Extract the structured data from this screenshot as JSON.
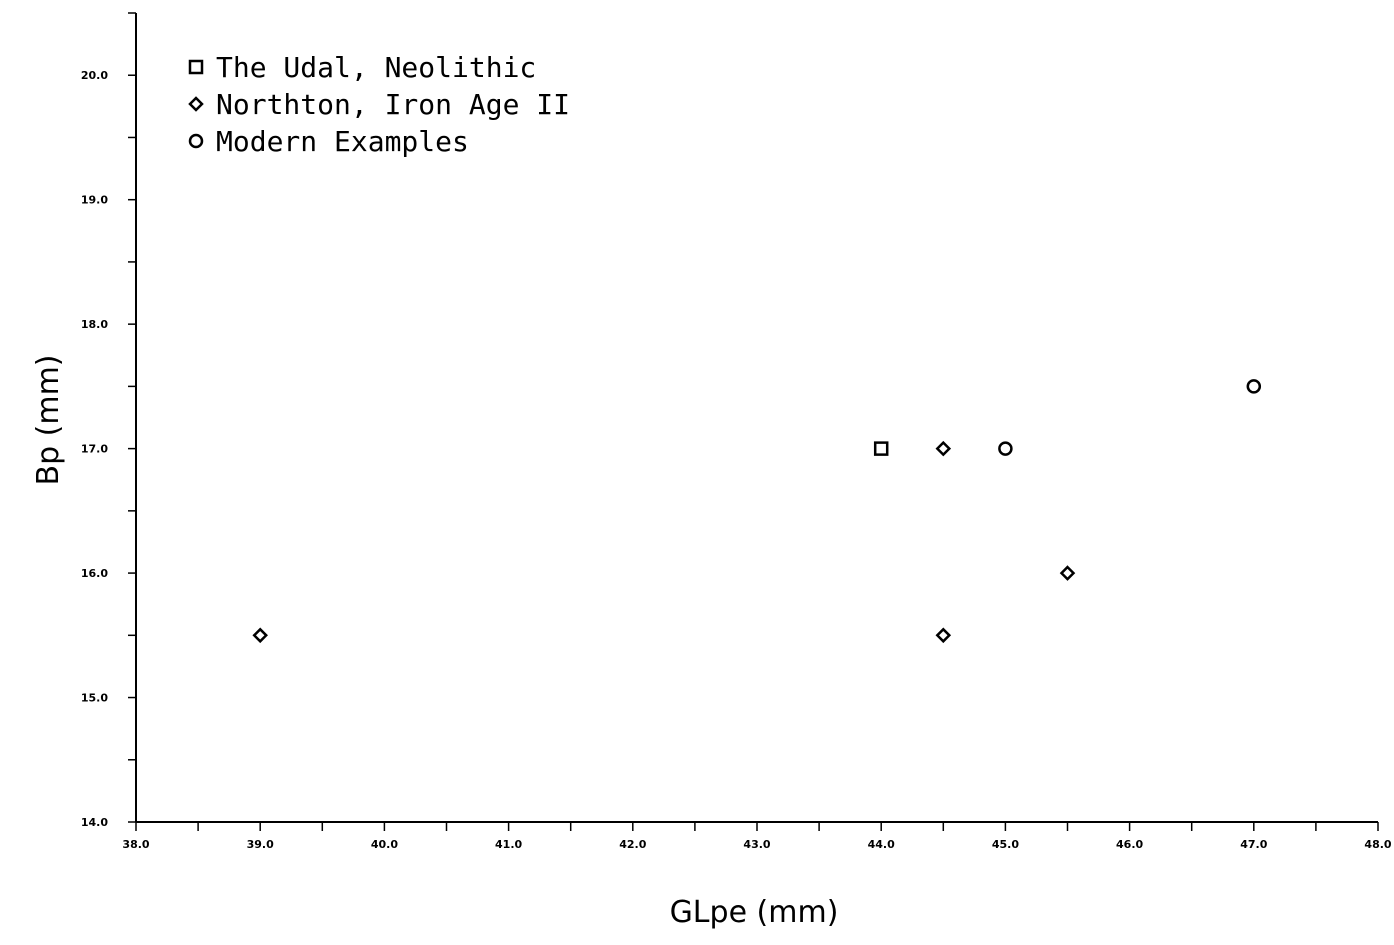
{
  "chart_data": {
    "type": "scatter",
    "title": "",
    "xlabel": "GLpe (mm)",
    "ylabel": "Bp (mm)",
    "xlim": [
      38.0,
      48.0
    ],
    "ylim": [
      14.0,
      20.5
    ],
    "x_ticks": [
      38.0,
      39.0,
      40.0,
      41.0,
      42.0,
      43.0,
      44.0,
      45.0,
      46.0,
      47.0,
      48.0
    ],
    "x_tick_labels": [
      "38.0",
      "39.0",
      "40.0",
      "41.0",
      "42.0",
      "43.0",
      "44.0",
      "45.0",
      "46.0",
      "47.0",
      "48.0"
    ],
    "y_ticks": [
      14.0,
      15.0,
      16.0,
      17.0,
      18.0,
      19.0,
      20.0
    ],
    "y_tick_labels": [
      "14.0",
      "15.0",
      "16.0",
      "17.0",
      "18.0",
      "19.0",
      "20.0"
    ],
    "grid": false,
    "legend_position": "top-left",
    "series": [
      {
        "name": "The Udal, Neolithic",
        "marker": "square",
        "points": [
          [
            44.0,
            17.0
          ]
        ]
      },
      {
        "name": "Northton, Iron Age II",
        "marker": "diamond",
        "points": [
          [
            39.0,
            15.5
          ],
          [
            44.5,
            17.0
          ],
          [
            44.5,
            15.5
          ],
          [
            45.5,
            16.0
          ]
        ]
      },
      {
        "name": "Modern Examples",
        "marker": "circle",
        "points": [
          [
            45.0,
            17.0
          ],
          [
            47.0,
            17.5
          ]
        ]
      }
    ]
  }
}
